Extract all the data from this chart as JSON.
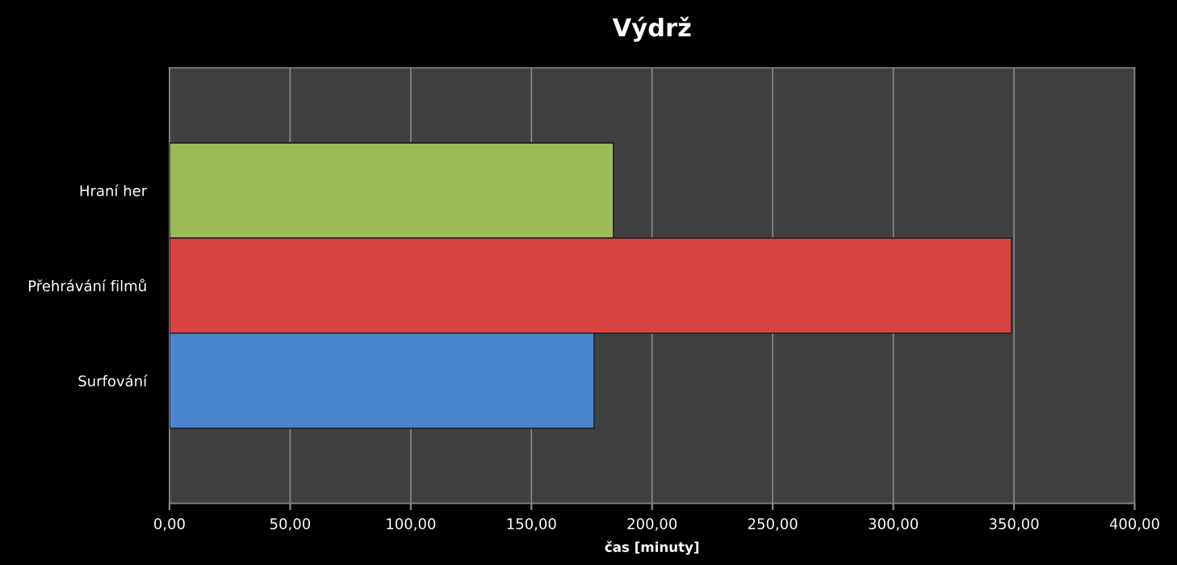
{
  "chart_data": {
    "type": "bar",
    "orientation": "horizontal",
    "title": "Výdrž",
    "xlabel": "čas [minuty]",
    "categories": [
      "Hraní her",
      "Přehrávání filmů",
      "Surfování"
    ],
    "values": [
      184,
      349,
      176
    ],
    "colors": [
      "#9bbb59",
      "#d94343",
      "#4a86d0"
    ],
    "xlim": [
      0,
      400
    ],
    "xticks": [
      {
        "value": 0,
        "label": "0,00"
      },
      {
        "value": 50,
        "label": "50,00"
      },
      {
        "value": 100,
        "label": "100,00"
      },
      {
        "value": 150,
        "label": "150,00"
      },
      {
        "value": 200,
        "label": "200,00"
      },
      {
        "value": 250,
        "label": "250,00"
      },
      {
        "value": 300,
        "label": "300,00"
      },
      {
        "value": 350,
        "label": "350,00"
      },
      {
        "value": 400,
        "label": "400,00"
      }
    ],
    "grid": "x",
    "legend": false
  }
}
